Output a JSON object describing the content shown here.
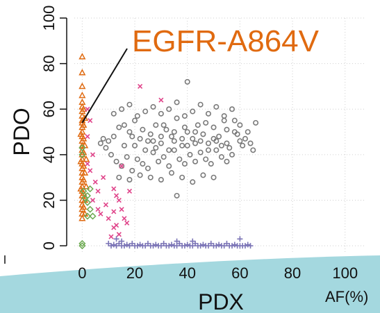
{
  "chart_data": {
    "type": "scatter",
    "xlabel": "PDX",
    "ylabel": "PDO",
    "unit_label": "AF(%)",
    "annotation": "EGFR-A864V",
    "xlim": [
      -3,
      108
    ],
    "ylim": [
      -3,
      100
    ],
    "x_ticks": [
      0,
      20,
      40,
      60,
      80,
      100
    ],
    "y_ticks": [
      0,
      20,
      40,
      60,
      80,
      100
    ],
    "x_tick_labels": [
      "0",
      "20",
      "40",
      "60",
      "80",
      "100"
    ],
    "y_tick_labels": [
      "0",
      "20",
      "40",
      "60",
      "80",
      "100"
    ],
    "grid": true,
    "colors": {
      "gray_circles": "#7a7a7a",
      "orange_triangles": "#e06a10",
      "pink_crosses": "#e0448a",
      "green_diamonds": "#6aa84f",
      "purple_plus": "#7b74b6",
      "annotation": "#e06a10",
      "wave": "#a4d8df"
    },
    "highlight_point": {
      "x": 0,
      "y": 54
    },
    "series": [
      {
        "marker": "circle",
        "color": "#7a7a7a",
        "points": [
          [
            10,
            46
          ],
          [
            12,
            48
          ],
          [
            14,
            52
          ],
          [
            16,
            44
          ],
          [
            18,
            50
          ],
          [
            20,
            55
          ],
          [
            22,
            47
          ],
          [
            24,
            42
          ],
          [
            26,
            49
          ],
          [
            28,
            53
          ],
          [
            30,
            45
          ],
          [
            32,
            51
          ],
          [
            34,
            48
          ],
          [
            36,
            56
          ],
          [
            38,
            44
          ],
          [
            40,
            50
          ],
          [
            42,
            47
          ],
          [
            44,
            53
          ],
          [
            46,
            49
          ],
          [
            48,
            45
          ],
          [
            50,
            52
          ],
          [
            52,
            48
          ],
          [
            54,
            55
          ],
          [
            56,
            43
          ],
          [
            58,
            50
          ],
          [
            60,
            46
          ],
          [
            11,
            40
          ],
          [
            13,
            37
          ],
          [
            15,
            35
          ],
          [
            17,
            39
          ],
          [
            19,
            33
          ],
          [
            21,
            38
          ],
          [
            23,
            36
          ],
          [
            25,
            34
          ],
          [
            27,
            41
          ],
          [
            29,
            37
          ],
          [
            31,
            39
          ],
          [
            33,
            35
          ],
          [
            35,
            42
          ],
          [
            37,
            38
          ],
          [
            39,
            36
          ],
          [
            41,
            40
          ],
          [
            43,
            37
          ],
          [
            45,
            41
          ],
          [
            47,
            38
          ],
          [
            49,
            36
          ],
          [
            51,
            42
          ],
          [
            53,
            39
          ],
          [
            55,
            37
          ],
          [
            57,
            40
          ],
          [
            12,
            58
          ],
          [
            15,
            60
          ],
          [
            18,
            62
          ],
          [
            21,
            57
          ],
          [
            24,
            59
          ],
          [
            27,
            61
          ],
          [
            30,
            58
          ],
          [
            33,
            60
          ],
          [
            36,
            63
          ],
          [
            39,
            57
          ],
          [
            42,
            59
          ],
          [
            45,
            62
          ],
          [
            48,
            58
          ],
          [
            51,
            61
          ],
          [
            54,
            57
          ],
          [
            57,
            60
          ],
          [
            14,
            30
          ],
          [
            18,
            29
          ],
          [
            22,
            31
          ],
          [
            26,
            30
          ],
          [
            30,
            29
          ],
          [
            34,
            32
          ],
          [
            38,
            30
          ],
          [
            42,
            28
          ],
          [
            46,
            31
          ],
          [
            50,
            30
          ],
          [
            20,
            44
          ],
          [
            25,
            46
          ],
          [
            30,
            48
          ],
          [
            35,
            46
          ],
          [
            40,
            44
          ],
          [
            45,
            46
          ],
          [
            50,
            47
          ],
          [
            55,
            45
          ],
          [
            28,
            43
          ],
          [
            33,
            42
          ],
          [
            38,
            47
          ],
          [
            43,
            45
          ],
          [
            48,
            42
          ],
          [
            53,
            44
          ],
          [
            16,
            53
          ],
          [
            19,
            48
          ],
          [
            23,
            51
          ],
          [
            27,
            46
          ],
          [
            31,
            53
          ],
          [
            35,
            50
          ],
          [
            39,
            52
          ],
          [
            43,
            50
          ],
          [
            47,
            54
          ],
          [
            51,
            46
          ],
          [
            55,
            51
          ],
          [
            59,
            49
          ],
          [
            36,
            22
          ],
          [
            40,
            72
          ],
          [
            58,
            55
          ],
          [
            60,
            53
          ],
          [
            64,
            45
          ],
          [
            62,
            47
          ],
          [
            66,
            54
          ],
          [
            65,
            42
          ],
          [
            9,
            43
          ],
          [
            8,
            47
          ],
          [
            7,
            45
          ],
          [
            63,
            50
          ],
          [
            61,
            44
          ]
        ]
      },
      {
        "marker": "triangle",
        "color": "#e06a10",
        "points": [
          [
            0,
            83
          ],
          [
            0,
            76
          ],
          [
            0,
            70
          ],
          [
            0,
            66
          ],
          [
            0,
            63
          ],
          [
            0,
            61
          ],
          [
            0,
            59
          ],
          [
            0,
            57
          ],
          [
            0,
            55
          ],
          [
            0,
            54
          ],
          [
            0,
            52
          ],
          [
            0,
            50
          ],
          [
            0,
            48
          ],
          [
            0,
            46
          ],
          [
            0,
            44
          ],
          [
            0,
            42
          ],
          [
            0,
            40
          ],
          [
            0,
            38
          ],
          [
            0,
            36
          ],
          [
            0,
            34
          ],
          [
            0,
            32
          ],
          [
            0,
            30
          ],
          [
            0,
            28
          ],
          [
            0,
            26
          ],
          [
            0,
            24
          ],
          [
            0,
            22
          ],
          [
            0,
            20
          ],
          [
            0,
            18
          ],
          [
            0,
            16
          ],
          [
            0,
            14
          ],
          [
            0,
            12
          ],
          [
            0.5,
            60
          ],
          [
            0.5,
            53
          ],
          [
            0.5,
            47
          ],
          [
            0.5,
            41
          ],
          [
            0.5,
            35
          ],
          [
            0.5,
            29
          ],
          [
            0.5,
            23
          ],
          [
            0.5,
            17
          ],
          [
            1,
            56
          ],
          [
            1,
            44
          ],
          [
            1,
            32
          ],
          [
            1,
            20
          ],
          [
            1,
            14
          ],
          [
            -0.5,
            49
          ],
          [
            -0.5,
            37
          ],
          [
            -0.5,
            25
          ],
          [
            1.5,
            38
          ],
          [
            1.5,
            26
          ]
        ]
      },
      {
        "marker": "cross",
        "color": "#e0448a",
        "points": [
          [
            2,
            60
          ],
          [
            3,
            55
          ],
          [
            2,
            48
          ],
          [
            4,
            40
          ],
          [
            3,
            33
          ],
          [
            5,
            28
          ],
          [
            6,
            24
          ],
          [
            8,
            30
          ],
          [
            9,
            18
          ],
          [
            7,
            14
          ],
          [
            10,
            12
          ],
          [
            12,
            25
          ],
          [
            13,
            22
          ],
          [
            14,
            20
          ],
          [
            15,
            16
          ],
          [
            12,
            8
          ],
          [
            14,
            5
          ],
          [
            17,
            10
          ],
          [
            18,
            24
          ],
          [
            15,
            35
          ],
          [
            22,
            70
          ],
          [
            30,
            64
          ],
          [
            12,
            15
          ],
          [
            13,
            9
          ],
          [
            16,
            12
          ],
          [
            4,
            20
          ],
          [
            6,
            16
          ],
          [
            2,
            36
          ],
          [
            11,
            4
          ]
        ]
      },
      {
        "marker": "diamond",
        "color": "#6aa84f",
        "points": [
          [
            0,
            43
          ],
          [
            0,
            40
          ],
          [
            0,
            1
          ],
          [
            0,
            0
          ],
          [
            0.5,
            24
          ],
          [
            1,
            21
          ],
          [
            2,
            22
          ],
          [
            3,
            25
          ],
          [
            2,
            19
          ],
          [
            3,
            16
          ],
          [
            4,
            13
          ],
          [
            2,
            13
          ]
        ]
      },
      {
        "marker": "plus",
        "color": "#7b74b6",
        "points": [
          [
            10,
            1
          ],
          [
            11,
            0
          ],
          [
            12,
            0.5
          ],
          [
            13,
            0
          ],
          [
            14,
            1
          ],
          [
            15,
            0
          ],
          [
            16,
            0
          ],
          [
            17,
            0.5
          ],
          [
            18,
            0
          ],
          [
            19,
            1
          ],
          [
            20,
            0
          ],
          [
            21,
            0
          ],
          [
            22,
            0.5
          ],
          [
            23,
            0
          ],
          [
            24,
            0
          ],
          [
            25,
            1
          ],
          [
            26,
            0
          ],
          [
            27,
            0
          ],
          [
            28,
            0.5
          ],
          [
            29,
            0
          ],
          [
            30,
            0
          ],
          [
            31,
            1
          ],
          [
            32,
            0
          ],
          [
            33,
            0
          ],
          [
            34,
            0.5
          ],
          [
            35,
            0
          ],
          [
            36,
            0
          ],
          [
            37,
            1
          ],
          [
            38,
            0
          ],
          [
            39,
            0
          ],
          [
            40,
            0.5
          ],
          [
            41,
            0
          ],
          [
            42,
            0
          ],
          [
            43,
            1
          ],
          [
            44,
            0
          ],
          [
            45,
            0
          ],
          [
            46,
            0.5
          ],
          [
            47,
            0
          ],
          [
            48,
            0
          ],
          [
            49,
            1
          ],
          [
            50,
            0
          ],
          [
            51,
            0
          ],
          [
            52,
            0.5
          ],
          [
            53,
            0
          ],
          [
            54,
            0
          ],
          [
            55,
            1
          ],
          [
            56,
            0
          ],
          [
            57,
            0
          ],
          [
            58,
            0.5
          ],
          [
            59,
            0
          ],
          [
            60,
            0
          ],
          [
            61,
            0
          ],
          [
            62,
            0
          ],
          [
            63,
            0.5
          ],
          [
            64,
            0
          ],
          [
            13,
            3
          ],
          [
            15,
            2
          ],
          [
            36,
            2
          ],
          [
            42,
            2
          ],
          [
            60,
            3
          ]
        ]
      }
    ]
  }
}
